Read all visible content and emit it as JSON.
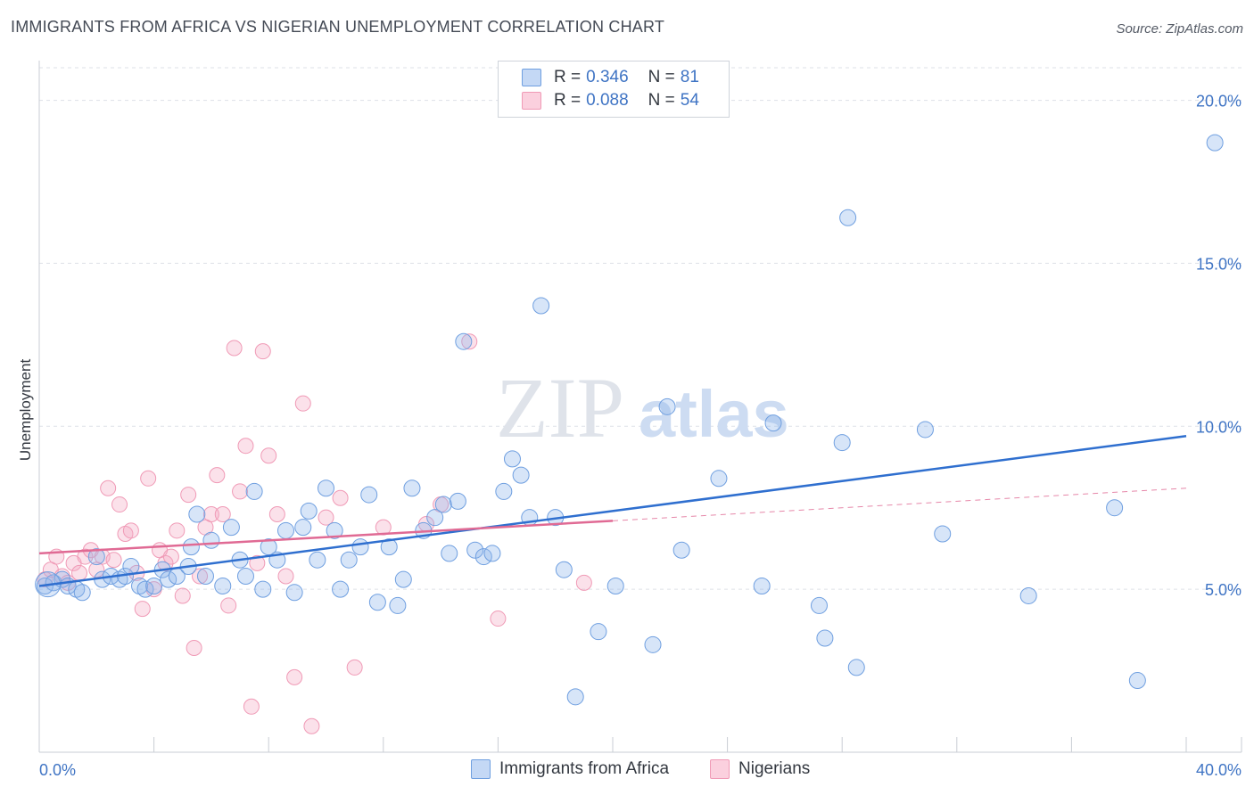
{
  "title": "IMMIGRANTS FROM AFRICA VS NIGERIAN UNEMPLOYMENT CORRELATION CHART",
  "source": "Source: ZipAtlas.com",
  "watermark": {
    "zip": "ZIP",
    "atlas": "atlas"
  },
  "colors": {
    "blue": "#6f9fe0",
    "blue_line": "#2f6fcf",
    "pink": "#f09ab6",
    "pink_line": "#e06a94",
    "axis_text": "#3f74c4"
  },
  "legend": [
    {
      "r_label": "R =",
      "r_value": "0.346",
      "n_label": "N =",
      "n_value": "81"
    },
    {
      "r_label": "R =",
      "r_value": "0.088",
      "n_label": "N =",
      "n_value": "54"
    }
  ],
  "chart_data": {
    "type": "scatter",
    "title": "IMMIGRANTS FROM AFRICA VS NIGERIAN UNEMPLOYMENT CORRELATION CHART",
    "xlabel": "",
    "ylabel": "Unemployment",
    "xlim": [
      0,
      40
    ],
    "ylim": [
      0,
      21
    ],
    "x_tick_labels": [
      "0.0%",
      "40.0%"
    ],
    "y_ticks": [
      5,
      10,
      15,
      20
    ],
    "y_tick_labels": [
      "5.0%",
      "10.0%",
      "15.0%",
      "20.0%"
    ],
    "series": [
      {
        "name": "Immigrants from Africa",
        "trend": {
          "x": [
            0,
            40
          ],
          "y": [
            5.1,
            9.7
          ],
          "style": "solid"
        },
        "points": [
          [
            0.2,
            5.1
          ],
          [
            0.5,
            5.2
          ],
          [
            0.8,
            5.3
          ],
          [
            1.0,
            5.1
          ],
          [
            1.3,
            5.0
          ],
          [
            1.5,
            4.9
          ],
          [
            2.0,
            6.0
          ],
          [
            2.2,
            5.3
          ],
          [
            2.5,
            5.4
          ],
          [
            2.8,
            5.3
          ],
          [
            3.0,
            5.4
          ],
          [
            3.2,
            5.7
          ],
          [
            3.5,
            5.1
          ],
          [
            3.7,
            5.0
          ],
          [
            4.0,
            5.1
          ],
          [
            4.3,
            5.6
          ],
          [
            4.5,
            5.3
          ],
          [
            4.8,
            5.4
          ],
          [
            5.2,
            5.7
          ],
          [
            5.3,
            6.3
          ],
          [
            5.5,
            7.3
          ],
          [
            5.8,
            5.4
          ],
          [
            6.0,
            6.5
          ],
          [
            6.4,
            5.1
          ],
          [
            6.7,
            6.9
          ],
          [
            7.0,
            5.9
          ],
          [
            7.2,
            5.4
          ],
          [
            7.5,
            8.0
          ],
          [
            7.8,
            5.0
          ],
          [
            8.0,
            6.3
          ],
          [
            8.3,
            5.9
          ],
          [
            8.6,
            6.8
          ],
          [
            8.9,
            4.9
          ],
          [
            9.2,
            6.9
          ],
          [
            9.4,
            7.4
          ],
          [
            9.7,
            5.9
          ],
          [
            10.0,
            8.1
          ],
          [
            10.3,
            6.8
          ],
          [
            10.5,
            5.0
          ],
          [
            10.8,
            5.9
          ],
          [
            11.2,
            6.3
          ],
          [
            11.5,
            7.9
          ],
          [
            11.8,
            4.6
          ],
          [
            12.2,
            6.3
          ],
          [
            12.5,
            4.5
          ],
          [
            12.7,
            5.3
          ],
          [
            13.0,
            8.1
          ],
          [
            13.4,
            6.8
          ],
          [
            13.8,
            7.2
          ],
          [
            14.1,
            7.6
          ],
          [
            14.3,
            6.1
          ],
          [
            14.6,
            7.7
          ],
          [
            14.8,
            12.6
          ],
          [
            15.2,
            6.2
          ],
          [
            15.5,
            6.0
          ],
          [
            15.8,
            6.1
          ],
          [
            16.2,
            8.0
          ],
          [
            16.5,
            9.0
          ],
          [
            16.8,
            8.5
          ],
          [
            17.1,
            7.2
          ],
          [
            17.5,
            13.7
          ],
          [
            18.0,
            7.2
          ],
          [
            18.3,
            5.6
          ],
          [
            18.7,
            1.7
          ],
          [
            19.5,
            3.7
          ],
          [
            20.1,
            5.1
          ],
          [
            21.4,
            3.3
          ],
          [
            21.9,
            10.6
          ],
          [
            22.4,
            6.2
          ],
          [
            23.7,
            8.4
          ],
          [
            25.2,
            5.1
          ],
          [
            25.6,
            10.1
          ],
          [
            27.2,
            4.5
          ],
          [
            27.4,
            3.5
          ],
          [
            28.0,
            9.5
          ],
          [
            28.2,
            16.4
          ],
          [
            28.5,
            2.6
          ],
          [
            30.9,
            9.9
          ],
          [
            31.5,
            6.7
          ],
          [
            34.5,
            4.8
          ],
          [
            37.5,
            7.5
          ],
          [
            38.3,
            2.2
          ],
          [
            41.0,
            18.7
          ]
        ]
      },
      {
        "name": "Nigerians",
        "trend": {
          "x": [
            0,
            20
          ],
          "y": [
            6.1,
            7.1
          ],
          "style": "solid",
          "extension": {
            "x": [
              20,
              40
            ],
            "y": [
              7.1,
              8.1
            ],
            "style": "dashed"
          }
        },
        "points": [
          [
            0.2,
            5.3
          ],
          [
            0.4,
            5.6
          ],
          [
            0.6,
            6.0
          ],
          [
            0.8,
            5.4
          ],
          [
            1.0,
            5.2
          ],
          [
            1.2,
            5.8
          ],
          [
            1.4,
            5.5
          ],
          [
            1.6,
            6.0
          ],
          [
            1.8,
            6.2
          ],
          [
            2.0,
            5.6
          ],
          [
            2.2,
            6.0
          ],
          [
            2.4,
            8.1
          ],
          [
            2.6,
            5.9
          ],
          [
            2.8,
            7.6
          ],
          [
            3.0,
            6.7
          ],
          [
            3.2,
            6.8
          ],
          [
            3.4,
            5.5
          ],
          [
            3.6,
            4.4
          ],
          [
            3.8,
            8.4
          ],
          [
            4.0,
            5.0
          ],
          [
            4.2,
            6.2
          ],
          [
            4.4,
            5.8
          ],
          [
            4.6,
            6.0
          ],
          [
            4.8,
            6.8
          ],
          [
            5.0,
            4.8
          ],
          [
            5.2,
            7.9
          ],
          [
            5.4,
            3.2
          ],
          [
            5.6,
            5.4
          ],
          [
            5.8,
            6.9
          ],
          [
            6.0,
            7.3
          ],
          [
            6.2,
            8.5
          ],
          [
            6.4,
            7.3
          ],
          [
            6.6,
            4.5
          ],
          [
            6.8,
            12.4
          ],
          [
            7.0,
            8.0
          ],
          [
            7.2,
            9.4
          ],
          [
            7.4,
            1.4
          ],
          [
            7.6,
            5.8
          ],
          [
            7.8,
            12.3
          ],
          [
            8.0,
            9.1
          ],
          [
            8.3,
            7.3
          ],
          [
            8.6,
            5.4
          ],
          [
            8.9,
            2.3
          ],
          [
            9.2,
            10.7
          ],
          [
            9.5,
            0.8
          ],
          [
            10.0,
            7.2
          ],
          [
            10.5,
            7.8
          ],
          [
            11.0,
            2.6
          ],
          [
            12.0,
            6.9
          ],
          [
            13.5,
            7.0
          ],
          [
            14.0,
            7.6
          ],
          [
            15.0,
            12.6
          ],
          [
            16.0,
            4.1
          ],
          [
            19.0,
            5.2
          ]
        ]
      }
    ]
  },
  "bottom_legend": [
    "Immigrants from Africa",
    "Nigerians"
  ]
}
